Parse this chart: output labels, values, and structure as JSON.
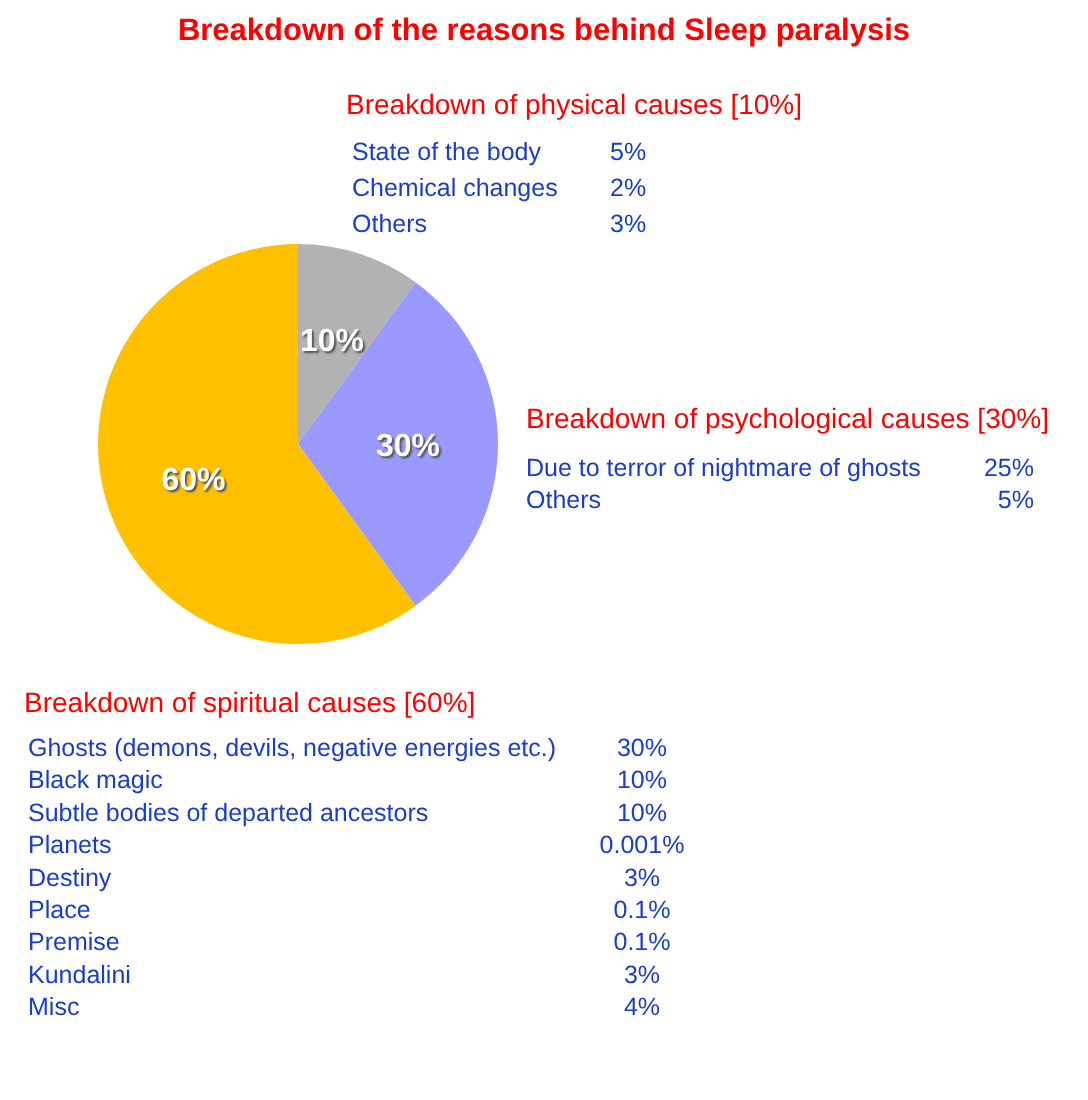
{
  "chart_data": [
    {
      "type": "pie",
      "title": "Breakdown of the reasons behind Sleep paralysis",
      "categories": [
        null,
        null,
        null
      ],
      "values": [
        10,
        30,
        60
      ],
      "colors": [
        "#b2b2b2",
        "#9999ff",
        "#ffc000"
      ],
      "data_labels": true,
      "value_labels": [
        "10%",
        "30%",
        "60%"
      ]
    },
    {
      "type": "other",
      "title": "Breakdown of physical causes [10%]",
      "categories": [
        "State of the body",
        "Chemical changes",
        "Others"
      ],
      "value_labels": [
        "5%",
        "2%",
        "3%"
      ]
    },
    {
      "type": "other",
      "title": "Breakdown of psychological causes [30%]",
      "categories": [
        "Due to terror of nightmare of ghosts",
        "Others"
      ],
      "value_labels": [
        "25%",
        "5%"
      ]
    },
    {
      "type": "other",
      "title": "Breakdown of spiritual causes [60%]",
      "categories": [
        "Ghosts (demons, devils, negative energies etc.)",
        "Black magic",
        "Subtle bodies of departed ancestors",
        "Planets",
        "Destiny",
        "Place",
        "Premise",
        "Kundalini",
        "Misc"
      ],
      "value_labels": [
        "30%",
        "10%",
        "10%",
        "0.001%",
        "3%",
        "0.1%",
        "0.1%",
        "3%",
        "4%"
      ]
    }
  ]
}
